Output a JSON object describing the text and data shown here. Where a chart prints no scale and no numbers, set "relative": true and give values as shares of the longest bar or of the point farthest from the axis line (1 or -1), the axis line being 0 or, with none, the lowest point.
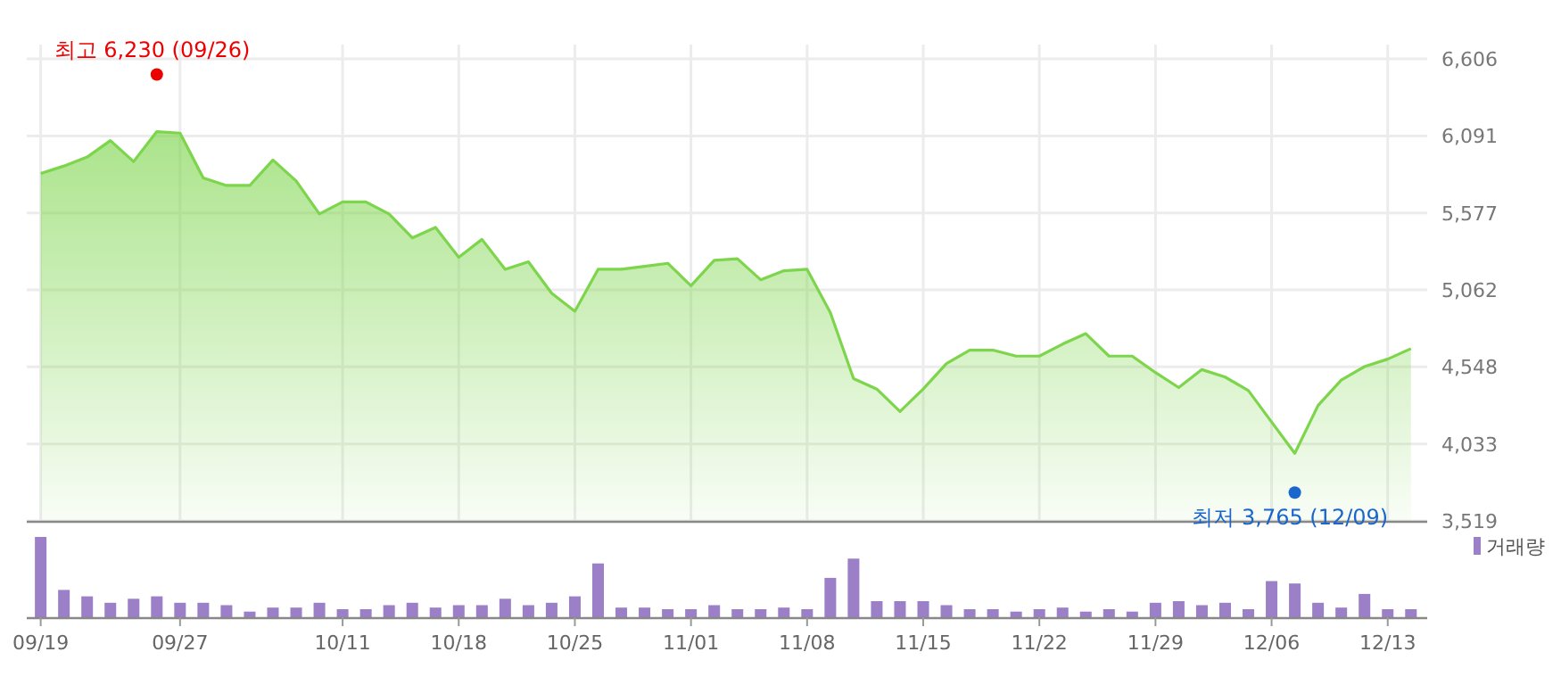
{
  "chart_data": [
    {
      "type": "area",
      "categories": [
        null,
        null,
        null,
        null,
        null,
        null,
        null,
        null,
        null,
        null,
        null,
        null,
        null,
        null,
        null,
        null,
        null,
        null,
        null,
        null,
        null,
        null,
        null,
        null,
        null,
        null,
        null,
        null,
        null,
        null,
        null,
        null,
        null,
        null,
        null,
        null,
        null,
        null,
        null,
        null,
        null,
        null,
        null,
        null,
        null,
        null,
        null,
        null,
        null,
        null,
        null,
        null,
        null,
        null,
        null,
        null,
        null,
        null,
        null,
        null
      ],
      "values": [
        5840,
        5890,
        5950,
        6060,
        5920,
        6120,
        6110,
        5810,
        5760,
        5760,
        5930,
        5790,
        5570,
        5650,
        5650,
        5570,
        5410,
        5480,
        5280,
        5400,
        5200,
        5250,
        5040,
        4920,
        5200,
        5200,
        5220,
        5240,
        5090,
        5260,
        5270,
        5130,
        5190,
        5200,
        4910,
        4470,
        4400,
        4250,
        4400,
        4570,
        4660,
        4660,
        4620,
        4620,
        4700,
        4770,
        4620,
        4620,
        4510,
        4410,
        4530,
        4480,
        4390,
        4180,
        3970,
        4290,
        4460,
        4550,
        4600,
        4670
      ],
      "color": "#7dd54c",
      "ylim": [
        3519,
        6606
      ],
      "yticks": [
        {
          "value": 3519,
          "label": "3,519"
        },
        {
          "value": 4033,
          "label": "4,033"
        },
        {
          "value": 4548,
          "label": "4,548"
        },
        {
          "value": 5062,
          "label": "5,062"
        },
        {
          "value": 5577,
          "label": "5,577"
        },
        {
          "value": 6091,
          "label": "6,091"
        },
        {
          "value": 6606,
          "label": "6,606"
        }
      ],
      "grid": true,
      "tick_labels": "y",
      "annotations": [
        "최고 6,230 (09/26)",
        "최저 3,765 (12/09)"
      ]
    },
    {
      "type": "bar",
      "relative": true,
      "categories": [
        "09/19",
        null,
        null,
        null,
        null,
        null,
        "09/27",
        null,
        null,
        null,
        null,
        null,
        null,
        "10/11",
        null,
        null,
        null,
        null,
        "10/18",
        null,
        null,
        null,
        null,
        "10/25",
        null,
        null,
        null,
        null,
        "11/01",
        null,
        null,
        null,
        null,
        "11/08",
        null,
        null,
        null,
        null,
        "11/15",
        null,
        null,
        null,
        null,
        "11/22",
        null,
        null,
        null,
        null,
        "11/29",
        null,
        null,
        null,
        null,
        "12/06",
        null,
        null,
        null,
        null,
        "12/13",
        null
      ],
      "series": [
        {
          "name": "거래량",
          "color": "#9b80c8",
          "values": [
            1,
            0.34,
            0.26,
            0.18,
            0.23,
            0.26,
            0.18,
            0.18,
            0.15,
            0.07,
            0.12,
            0.12,
            0.18,
            0.1,
            0.1,
            0.15,
            0.18,
            0.12,
            0.15,
            0.15,
            0.23,
            0.15,
            0.18,
            0.26,
            0.67,
            0.12,
            0.12,
            0.1,
            0.1,
            0.15,
            0.1,
            0.1,
            0.12,
            0.1,
            0.49,
            0.73,
            0.2,
            0.2,
            0.2,
            0.15,
            0.1,
            0.1,
            0.07,
            0.1,
            0.12,
            0.07,
            0.1,
            0.07,
            0.18,
            0.2,
            0.15,
            0.18,
            0.1,
            0.45,
            0.42,
            0.18,
            0.12,
            0.29,
            0.1,
            0.1
          ]
        }
      ],
      "legend": "top right",
      "tick_labels": "x",
      "grid": false
    }
  ]
}
